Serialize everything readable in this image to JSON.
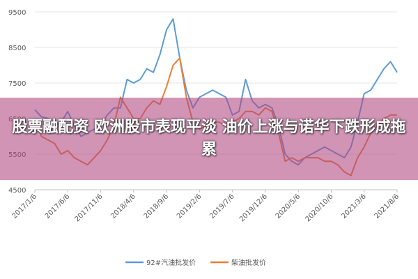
{
  "chart_data": {
    "type": "line",
    "categories": [
      "2017/1/6",
      null,
      null,
      null,
      null,
      "2017/6/6",
      null,
      null,
      null,
      null,
      "2017/11/6",
      null,
      null,
      null,
      null,
      "2018/4/6",
      null,
      null,
      null,
      null,
      "2018/9/6",
      null,
      null,
      null,
      null,
      "2019/2/6",
      null,
      null,
      null,
      null,
      "2019/7/6",
      null,
      null,
      null,
      null,
      "2019/12/6",
      null,
      null,
      null,
      null,
      "2020/5/6",
      null,
      null,
      null,
      null,
      "2020/10/6",
      null,
      null,
      null,
      null,
      "2021/3/6",
      null,
      null,
      null,
      null,
      "2021/8/6"
    ],
    "series": [
      {
        "name": "92#汽油批发价",
        "color": "#5b9bd5",
        "values": [
          6750,
          6550,
          6500,
          6300,
          6400,
          6700,
          6300,
          6000,
          6100,
          6200,
          6300,
          6600,
          6800,
          6800,
          7600,
          7500,
          7600,
          7900,
          7800,
          8300,
          9000,
          9300,
          8200,
          7300,
          6800,
          7100,
          7200,
          7300,
          7200,
          7100,
          6600,
          6700,
          7600,
          7000,
          6800,
          6900,
          6800,
          6300,
          5500,
          5300,
          5200,
          5400,
          5500,
          5600,
          5700,
          5600,
          5500,
          5400,
          5700,
          6400,
          7200,
          7300,
          7600,
          7900,
          8100,
          7800
        ]
      },
      {
        "name": "柴油批发价",
        "color": "#ed7d31",
        "values": [
          6500,
          6000,
          5900,
          5800,
          5500,
          5600,
          5400,
          5300,
          5200,
          5400,
          5600,
          5900,
          6300,
          7100,
          6800,
          6500,
          6500,
          6800,
          7000,
          6900,
          7400,
          8000,
          8200,
          7100,
          6400,
          6200,
          6300,
          6400,
          6400,
          6300,
          6400,
          6500,
          6700,
          6700,
          6600,
          6800,
          6700,
          6100,
          5300,
          5400,
          5300,
          5400,
          5400,
          5400,
          5300,
          5300,
          5200,
          5000,
          4900,
          5400,
          5700,
          6100,
          6300,
          6500,
          6600,
          6600
        ]
      }
    ],
    "ylim": [
      4500,
      9500
    ],
    "yticks": [
      4500,
      5500,
      6500,
      7500,
      8500,
      9500
    ],
    "grid": true,
    "legend": "bottom"
  },
  "banner": {
    "text": "股票融配资 欧洲股市表现平淡 油价上涨与诺华下跌形成拖累"
  }
}
